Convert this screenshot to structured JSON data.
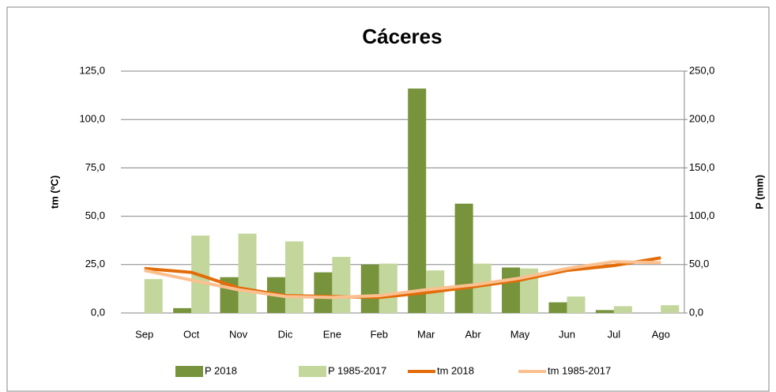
{
  "chart_data": {
    "type": "bar_line",
    "title": "Cáceres",
    "ylabel": "tm (ºC)",
    "y2label": "P (mm)",
    "categories": [
      "Sep",
      "Oct",
      "Nov",
      "Dic",
      "Ene",
      "Feb",
      "Mar",
      "Abr",
      "May",
      "Jun",
      "Jul",
      "Ago"
    ],
    "series": [
      {
        "name": "P 2018",
        "type": "bar",
        "axis": "y2",
        "color": "#77933c",
        "values": [
          0,
          5,
          37,
          37,
          42,
          50,
          232,
          113,
          47,
          11,
          3,
          0
        ]
      },
      {
        "name": "P 1985-2017",
        "type": "bar",
        "axis": "y2",
        "color": "#c3d69b",
        "values": [
          35,
          80,
          82,
          74,
          58,
          51,
          44,
          51,
          46,
          17,
          7,
          8
        ]
      },
      {
        "name": "tm 2018",
        "type": "line",
        "axis": "y",
        "color": "#e36c09",
        "values": [
          23,
          21,
          13,
          9,
          8.5,
          8,
          10.5,
          13.5,
          17,
          22,
          24.5,
          28.5
        ]
      },
      {
        "name": "tm 1985-2017",
        "type": "line",
        "axis": "y",
        "color": "#fac090",
        "values": [
          22,
          17,
          12,
          8.5,
          8,
          9,
          12,
          14.5,
          18,
          23,
          26.5,
          26
        ]
      }
    ],
    "ylim": [
      0,
      125
    ],
    "yticks": [
      {
        "value": 0,
        "label": "0,0"
      },
      {
        "value": 25,
        "label": "25,0"
      },
      {
        "value": 50,
        "label": "50,0"
      },
      {
        "value": 75,
        "label": "75,0"
      },
      {
        "value": 100,
        "label": "100,0"
      },
      {
        "value": 125,
        "label": "125,0"
      }
    ],
    "y2lim": [
      0,
      250
    ],
    "y2ticks": [
      {
        "value": 0,
        "label": "0,0"
      },
      {
        "value": 50,
        "label": "50,0"
      },
      {
        "value": 100,
        "label": "100,0"
      },
      {
        "value": 150,
        "label": "150,0"
      },
      {
        "value": 200,
        "label": "200,0"
      },
      {
        "value": 250,
        "label": "250,0"
      }
    ],
    "grid": true,
    "legend": "bottom"
  }
}
